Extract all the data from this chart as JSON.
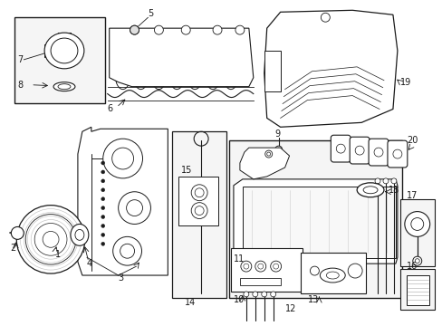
{
  "bg_color": "#ffffff",
  "line_color": "#1a1a1a",
  "box_bg": "#f5f5f5",
  "fig_width": 4.89,
  "fig_height": 3.6,
  "dpi": 100
}
